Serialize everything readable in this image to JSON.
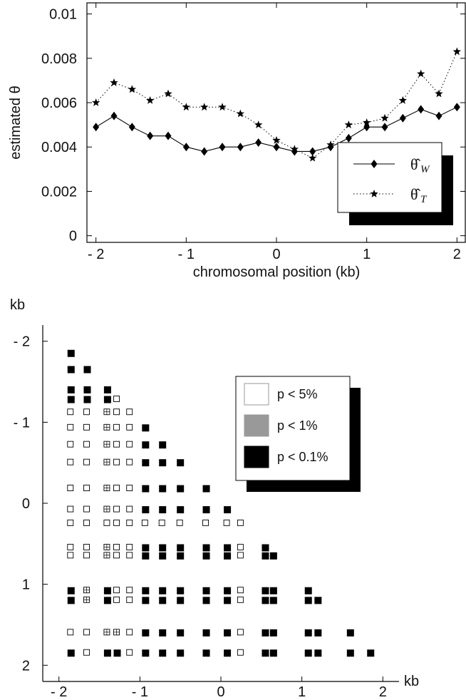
{
  "chart_data": [
    {
      "type": "line",
      "xlabel": "chromosomal position (kb)",
      "ylabel": "estimated θ",
      "xlim": [
        -2.1,
        2.1
      ],
      "ylim": [
        -0.0003,
        0.0105
      ],
      "x_ticks": [
        -2,
        -1,
        0,
        1,
        2
      ],
      "x_tick_labels": [
        "- 2",
        "- 1",
        "0",
        "1",
        "2"
      ],
      "y_ticks": [
        0,
        0.002,
        0.004,
        0.006,
        0.008,
        0.01
      ],
      "y_tick_labels": [
        "0",
        "0.002",
        "0.004",
        "0.006",
        "0.008",
        "0.01"
      ],
      "legend_position": "lower-right",
      "x": [
        -2.0,
        -1.8,
        -1.6,
        -1.4,
        -1.2,
        -1.0,
        -0.8,
        -0.6,
        -0.4,
        -0.2,
        0.0,
        0.2,
        0.4,
        0.6,
        0.8,
        1.0,
        1.2,
        1.4,
        1.6,
        1.8,
        2.0
      ],
      "series": [
        {
          "name": "θ̂W",
          "legend_symbol": "θ̂",
          "legend_subscript": "W",
          "marker": "diamond",
          "line": "solid",
          "values": [
            0.0049,
            0.0054,
            0.0049,
            0.0045,
            0.0045,
            0.004,
            0.0038,
            0.004,
            0.004,
            0.0042,
            0.004,
            0.0038,
            0.0038,
            0.004,
            0.0044,
            0.0049,
            0.0049,
            0.0053,
            0.0057,
            0.0054,
            0.0058
          ]
        },
        {
          "name": "θ̂T",
          "legend_symbol": "θ̂",
          "legend_subscript": "T",
          "marker": "star",
          "line": "dotted",
          "values": [
            0.006,
            0.0069,
            0.0066,
            0.0061,
            0.0064,
            0.0058,
            0.0058,
            0.0058,
            0.0055,
            0.005,
            0.0043,
            0.0039,
            0.0035,
            0.0041,
            0.005,
            0.0051,
            0.0053,
            0.0061,
            0.0073,
            0.0064,
            0.0083
          ]
        }
      ]
    },
    {
      "type": "heatmap",
      "xlabel": "kb",
      "ylabel": "kb",
      "xlim": [
        -2.2,
        2.2
      ],
      "ylim": [
        -2.2,
        2.2
      ],
      "x_ticks": [
        -2,
        -1,
        0,
        1,
        2
      ],
      "x_tick_labels": [
        "- 2",
        "- 1",
        "0",
        "1",
        "2"
      ],
      "y_ticks": [
        -2,
        -1,
        0,
        1,
        2
      ],
      "y_tick_labels": [
        "- 2",
        "- 1",
        "0",
        "1",
        "2"
      ],
      "legend_position": "upper-right",
      "legend": [
        {
          "label": "p < 5%",
          "color": "#ffffff"
        },
        {
          "label": "p < 1%",
          "color": "#999999"
        },
        {
          "label": "p < 0.1%",
          "color": "#000000"
        }
      ],
      "colors": {
        "p5": "#ffffff",
        "p1": "#999999",
        "p01": "#000000"
      },
      "col_positions": [
        -1.85,
        -1.65,
        -1.4,
        -1.28,
        -1.12,
        -0.93,
        -0.72,
        -0.5,
        -0.18,
        0.08,
        0.25,
        0.55,
        0.65,
        1.08,
        1.2,
        1.6,
        1.85
      ],
      "row_positions": [
        -1.85,
        -1.65,
        -1.4,
        -1.28,
        -1.12,
        -0.93,
        -0.72,
        -0.5,
        -0.18,
        0.08,
        0.25,
        0.55,
        0.65,
        1.08,
        1.2,
        1.6,
        1.85
      ],
      "matrix": [
        [
          3
        ],
        [
          3,
          3
        ],
        [
          3,
          3,
          3
        ],
        [
          3,
          3,
          3,
          1
        ],
        [
          1,
          1,
          2,
          0,
          0
        ],
        [
          1,
          1,
          2,
          0,
          0,
          3
        ],
        [
          1,
          1,
          2,
          0,
          0,
          3,
          3
        ],
        [
          1,
          1,
          2,
          0,
          0,
          3,
          3,
          3
        ],
        [
          1,
          1,
          2,
          0,
          0,
          3,
          3,
          3,
          3
        ],
        [
          1,
          1,
          2,
          0,
          0,
          3,
          3,
          3,
          3,
          3
        ],
        [
          0,
          0,
          0,
          1,
          0,
          0,
          0,
          0,
          0,
          0,
          1
        ],
        [
          1,
          1,
          2,
          0,
          0,
          3,
          3,
          3,
          3,
          3,
          0,
          3
        ],
        [
          1,
          1,
          2,
          0,
          0,
          3,
          3,
          3,
          3,
          3,
          0,
          3,
          3
        ],
        [
          3,
          2,
          3,
          0,
          0,
          3,
          3,
          3,
          3,
          3,
          0,
          3,
          3,
          3
        ],
        [
          3,
          2,
          3,
          0,
          0,
          3,
          3,
          3,
          3,
          3,
          0,
          3,
          3,
          3,
          3
        ],
        [
          1,
          1,
          2,
          2,
          0,
          3,
          3,
          3,
          3,
          3,
          0,
          3,
          3,
          3,
          3,
          3
        ],
        [
          3,
          1,
          3,
          3,
          0,
          3,
          3,
          3,
          3,
          3,
          0,
          3,
          3,
          3,
          3,
          3,
          3
        ]
      ]
    }
  ]
}
